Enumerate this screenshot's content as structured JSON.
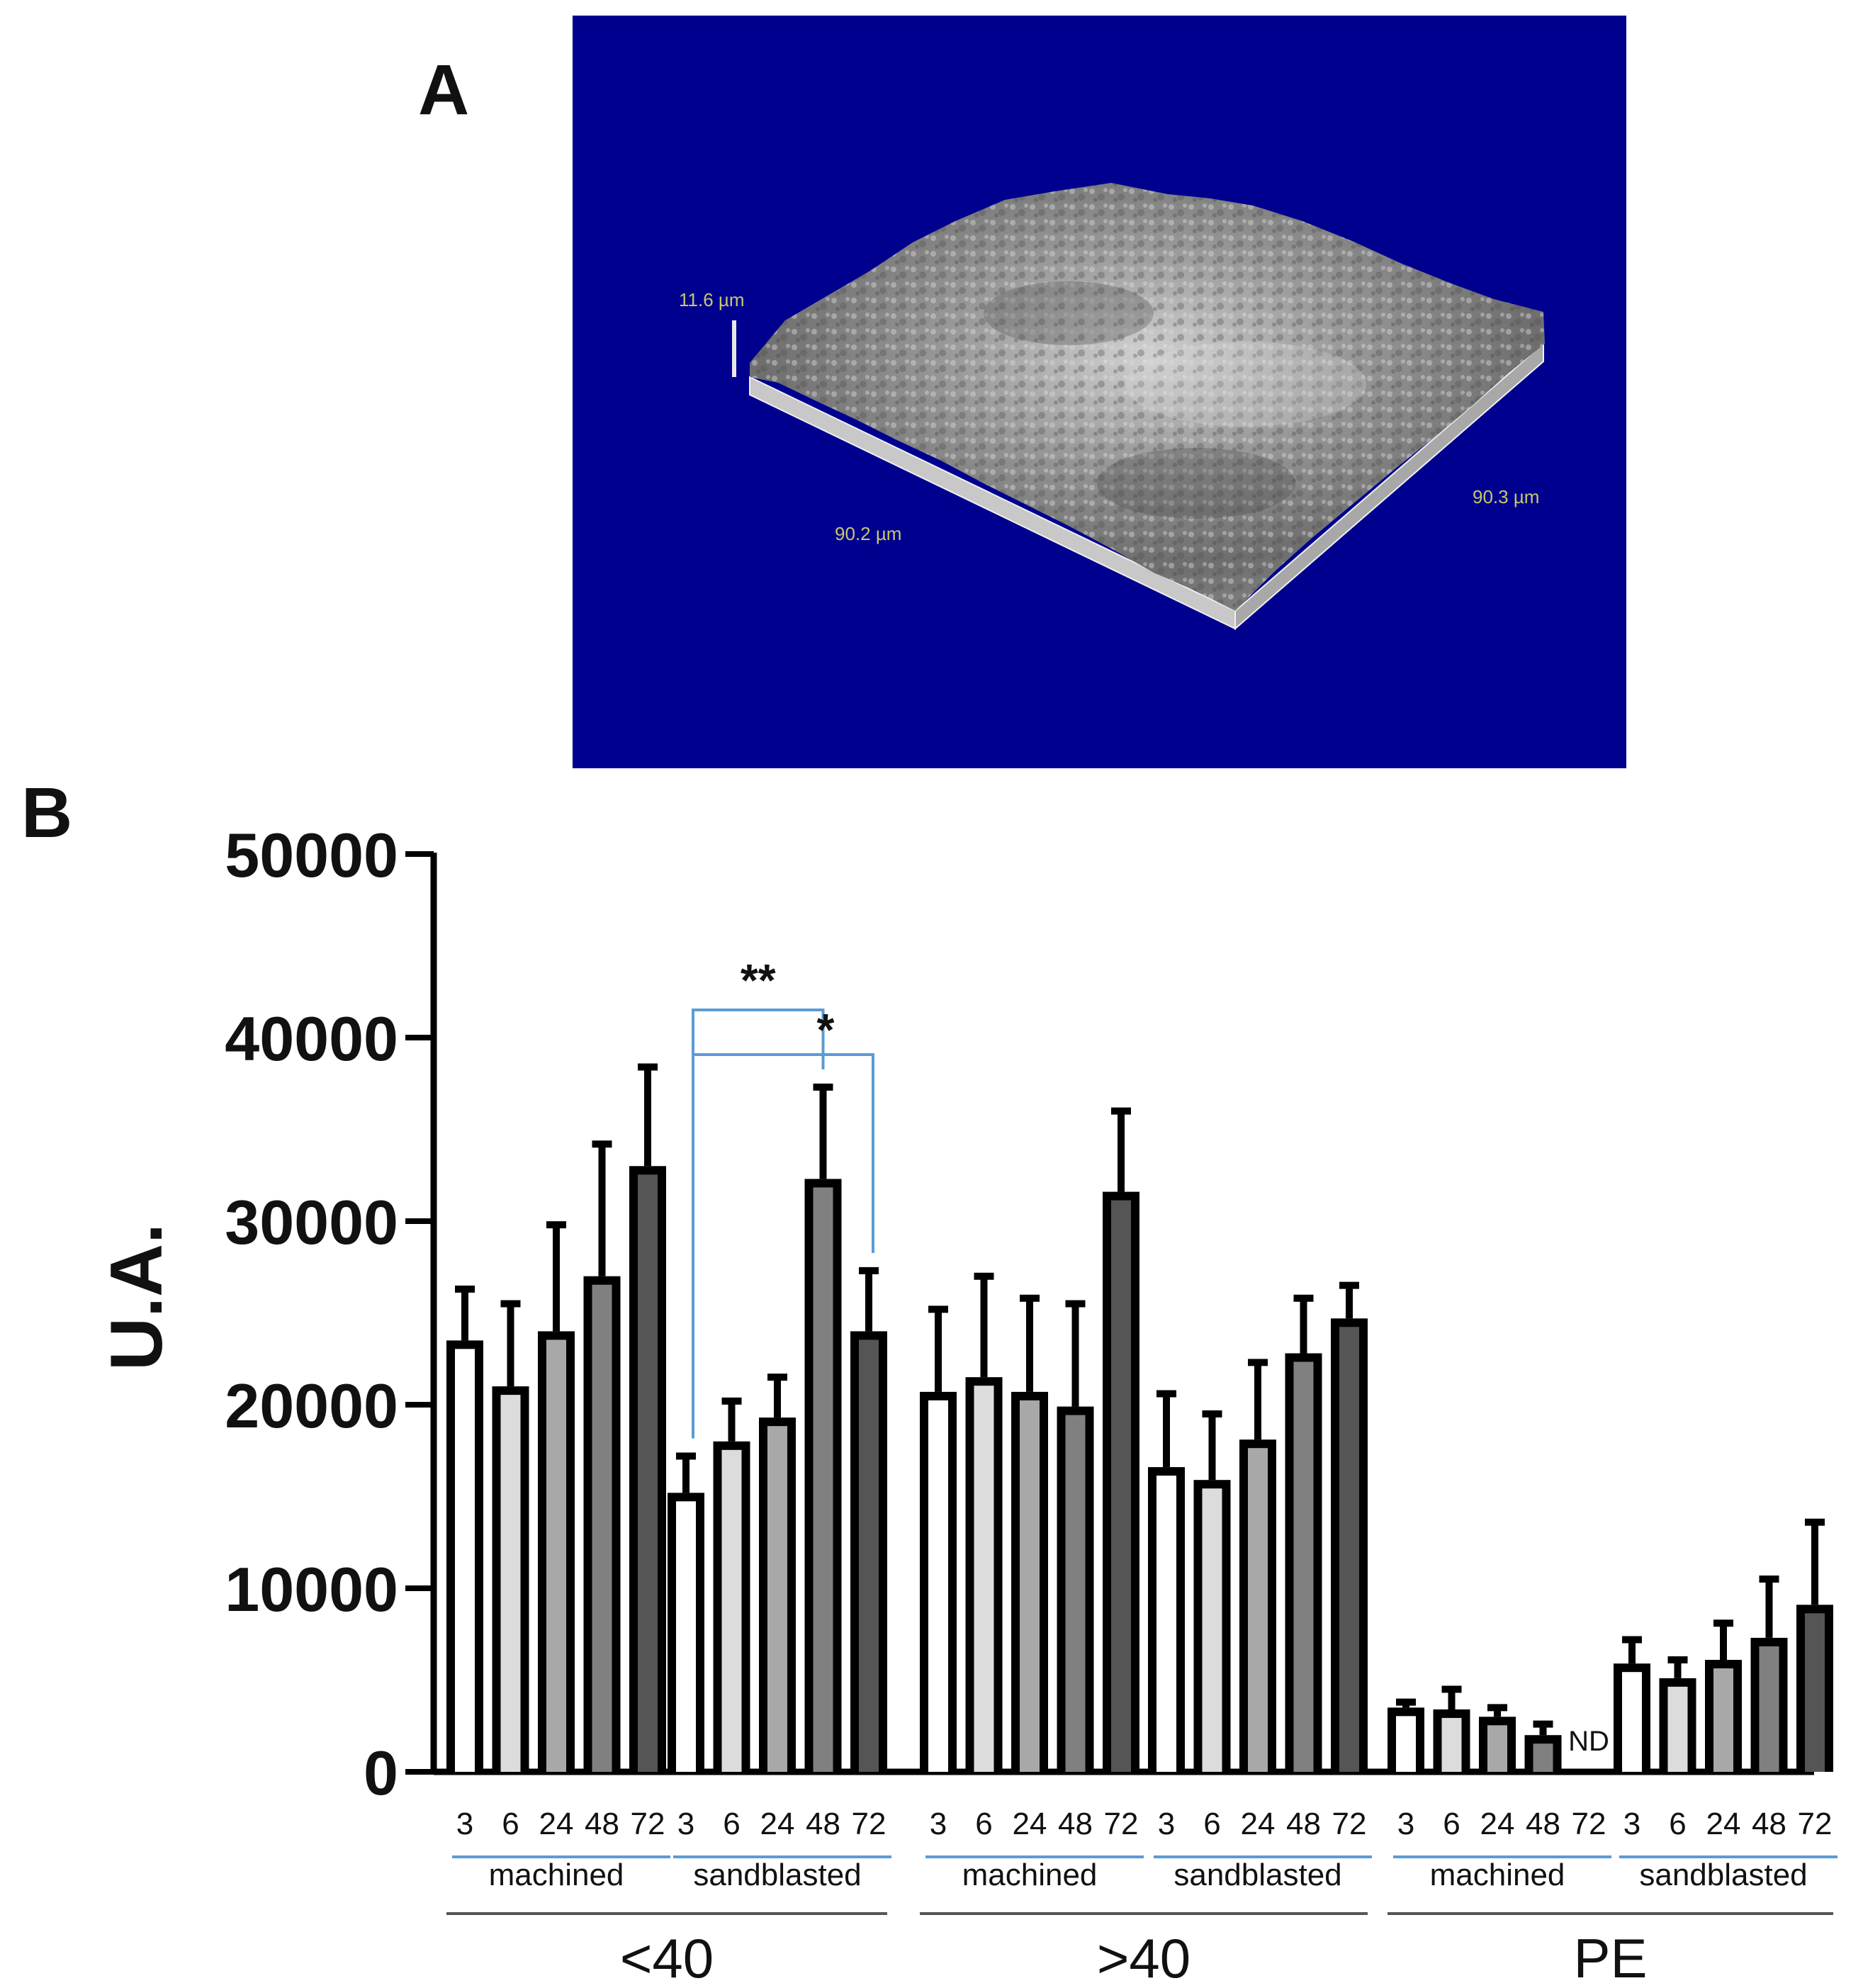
{
  "panels": {
    "a_label": "A",
    "b_label": "B"
  },
  "micrograph": {
    "background_color": "#00008f",
    "scale_color": "#c8c86a",
    "height_label": "11.6 µm",
    "x_label": "90.2 µm",
    "y_label": "90.3 µm"
  },
  "chart_data": {
    "type": "bar",
    "ylabel": "U.A.",
    "xlabel": "",
    "ylim": [
      0,
      50000
    ],
    "yticks": [
      "0",
      "10000",
      "20000",
      "30000",
      "40000",
      "50000"
    ],
    "time_labels": [
      "3",
      "6",
      "24",
      "48",
      "72"
    ],
    "bar_fills": [
      "#ffffff",
      "#dcdcdc",
      "#a8a8a8",
      "#808080",
      "#555555"
    ],
    "bracket_color": "#5b9bd5",
    "groups": [
      {
        "name": "<40",
        "subgroups": [
          {
            "name": "machined",
            "values": [
              23500,
              21000,
              24000,
              27000,
              33000
            ],
            "errors": [
              2800,
              4500,
              5800,
              7200,
              5400
            ],
            "nd": []
          },
          {
            "name": "sandblasted",
            "values": [
              15200,
              18000,
              19300,
              32300,
              24000
            ],
            "errors": [
              2000,
              2200,
              2200,
              5000,
              3300
            ],
            "nd": []
          }
        ]
      },
      {
        "name": ">40",
        "subgroups": [
          {
            "name": "machined",
            "values": [
              20700,
              21500,
              20700,
              19900,
              31600
            ],
            "errors": [
              4500,
              5500,
              5100,
              5600,
              4400
            ],
            "nd": []
          },
          {
            "name": "sandblasted",
            "values": [
              16600,
              15900,
              18100,
              22800,
              24700
            ],
            "errors": [
              4000,
              3600,
              4200,
              3000,
              1800
            ],
            "nd": []
          }
        ]
      },
      {
        "name": "PE",
        "subgroups": [
          {
            "name": "machined",
            "values": [
              3500,
              3400,
              3000,
              2000,
              0
            ],
            "errors": [
              300,
              1100,
              500,
              600,
              0
            ],
            "nd": [
              "ND"
            ]
          },
          {
            "name": "sandblasted",
            "values": [
              5900,
              5100,
              6100,
              7300,
              9100
            ],
            "errors": [
              1300,
              1000,
              2000,
              3200,
              4500
            ],
            "nd": []
          }
        ]
      }
    ],
    "significance": [
      {
        "text": "**",
        "group": 0,
        "subgroup": 1,
        "from_bar": 0,
        "to_bar": 3
      },
      {
        "text": "*",
        "group": 0,
        "subgroup": 1,
        "from_bar": 0,
        "to_bar": 4
      }
    ]
  }
}
